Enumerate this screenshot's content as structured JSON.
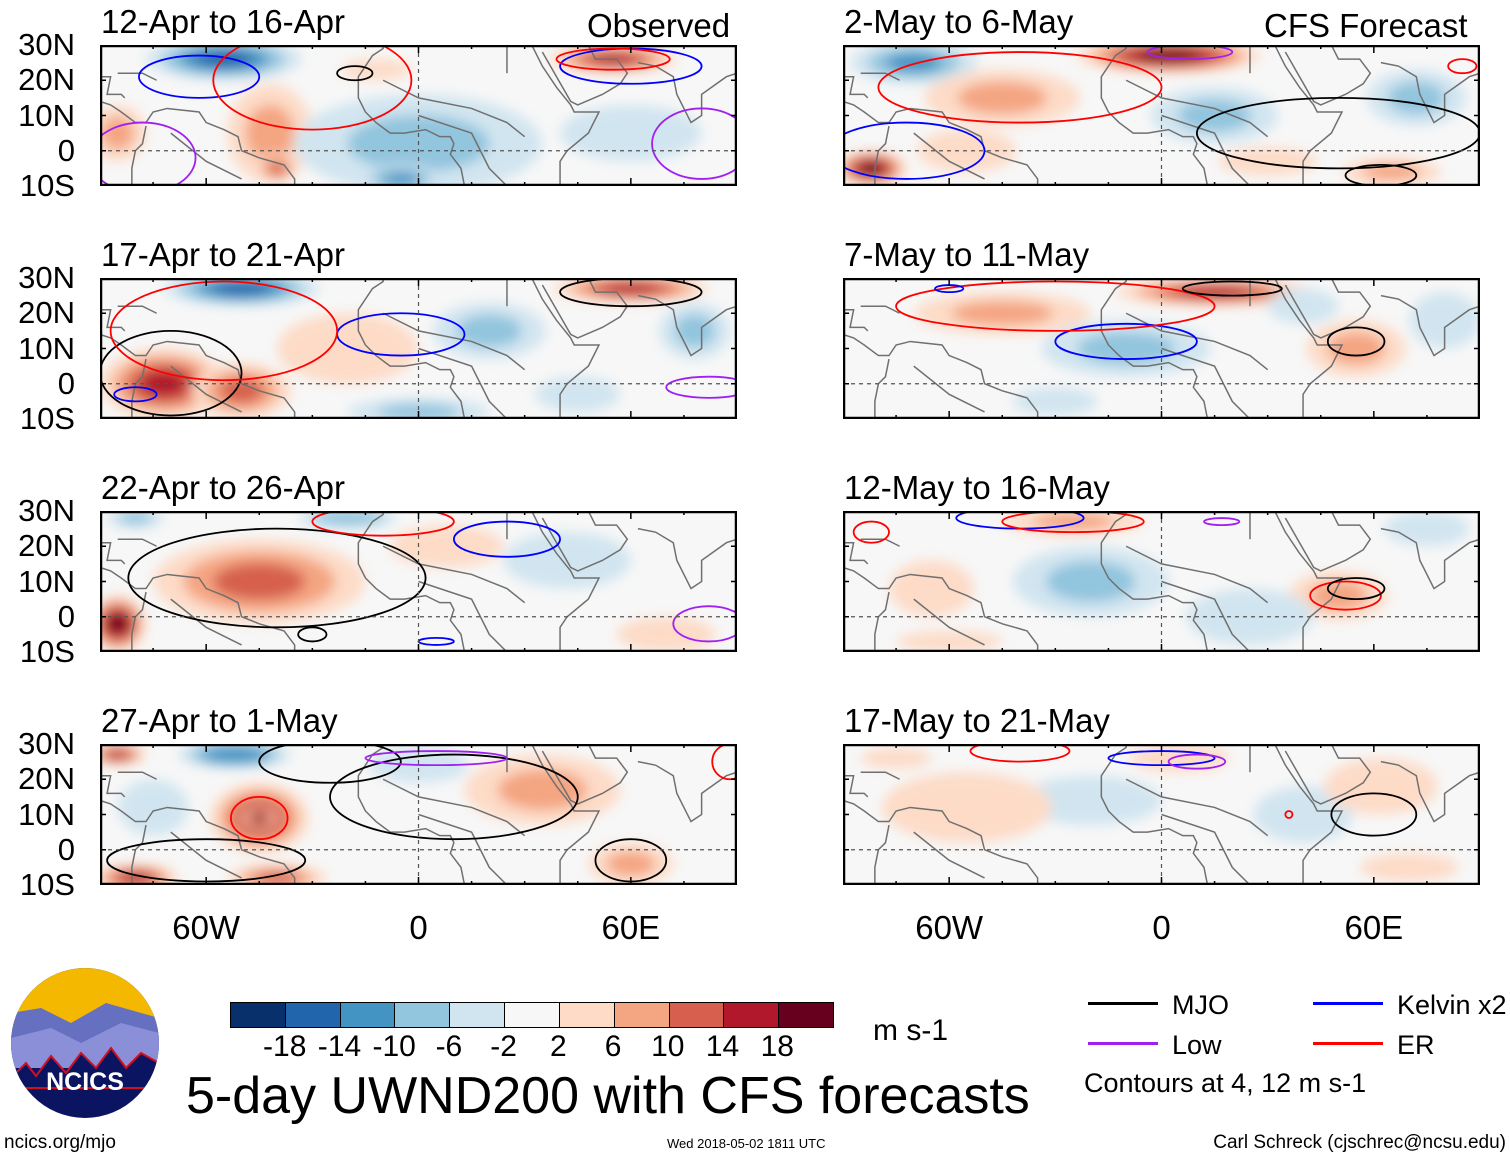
{
  "header": {
    "left_label": "Observed",
    "right_label": "CFS Forecast"
  },
  "lat_labels": [
    "30N",
    "20N",
    "10N",
    "0",
    "10S"
  ],
  "lon_labels": [
    "60W",
    "0",
    "60E"
  ],
  "panels": [
    {
      "title": "12-Apr to 16-Apr",
      "column": "observed",
      "blobs": [
        [
          -55,
          26,
          22,
          6,
          -16
        ],
        [
          -42,
          5,
          12,
          14,
          8
        ],
        [
          -40,
          -5,
          6,
          4,
          12
        ],
        [
          0,
          2,
          35,
          14,
          -8
        ],
        [
          -5,
          -8,
          12,
          4,
          -11
        ],
        [
          55,
          26,
          18,
          4,
          14
        ],
        [
          -12,
          23,
          10,
          3,
          5
        ],
        [
          60,
          5,
          20,
          8,
          -3
        ],
        [
          -85,
          5,
          8,
          8,
          6
        ]
      ],
      "contours": [
        [
          -62,
          21,
          17,
          6,
          "kelvin"
        ],
        [
          -30,
          20,
          28,
          14,
          "er"
        ],
        [
          -18,
          22,
          5,
          2,
          "mjo"
        ],
        [
          60,
          24,
          20,
          5,
          "kelvin"
        ],
        [
          55,
          26,
          16,
          3,
          "er"
        ],
        [
          80,
          2,
          14,
          10,
          "low"
        ],
        [
          -78,
          -2,
          15,
          10,
          "low"
        ]
      ]
    },
    {
      "title": "17-Apr to 21-Apr",
      "column": "observed",
      "blobs": [
        [
          -50,
          27,
          22,
          5,
          -16
        ],
        [
          -72,
          0,
          18,
          10,
          16
        ],
        [
          -50,
          -2,
          14,
          8,
          12
        ],
        [
          60,
          27,
          22,
          4,
          14
        ],
        [
          20,
          15,
          16,
          8,
          -8
        ],
        [
          78,
          15,
          10,
          8,
          -8
        ],
        [
          0,
          -8,
          20,
          4,
          -8
        ],
        [
          -20,
          10,
          20,
          10,
          3
        ],
        [
          45,
          -3,
          12,
          5,
          -6
        ]
      ],
      "contours": [
        [
          -70,
          3,
          20,
          12,
          "mjo"
        ],
        [
          -5,
          14,
          18,
          6,
          "kelvin"
        ],
        [
          -55,
          15,
          32,
          14,
          "er"
        ],
        [
          60,
          26,
          20,
          4,
          "mjo"
        ],
        [
          82,
          -1,
          12,
          3,
          "low"
        ],
        [
          -80,
          -3,
          6,
          2,
          "kelvin"
        ]
      ]
    },
    {
      "title": "22-Apr to 26-Apr",
      "column": "observed",
      "blobs": [
        [
          -45,
          10,
          30,
          12,
          10
        ],
        [
          -85,
          -2,
          8,
          8,
          18
        ],
        [
          -20,
          28,
          14,
          3,
          -10
        ],
        [
          42,
          16,
          18,
          8,
          -6
        ],
        [
          8,
          20,
          16,
          6,
          4
        ],
        [
          -80,
          28,
          8,
          3,
          -8
        ],
        [
          70,
          -5,
          14,
          5,
          4
        ]
      ],
      "contours": [
        [
          -40,
          11,
          42,
          14,
          "mjo"
        ],
        [
          25,
          22,
          15,
          5,
          "kelvin"
        ],
        [
          -10,
          27,
          20,
          4,
          "er"
        ],
        [
          -30,
          -5,
          4,
          2,
          "mjo"
        ],
        [
          5,
          -7,
          5,
          1,
          "kelvin"
        ],
        [
          82,
          -2,
          10,
          5,
          "low"
        ]
      ]
    },
    {
      "title": "27-Apr to 1-May",
      "column": "observed",
      "blobs": [
        [
          -45,
          9,
          14,
          10,
          14
        ],
        [
          -45,
          9,
          5,
          3,
          20
        ],
        [
          -52,
          27,
          16,
          4,
          -14
        ],
        [
          -85,
          27,
          8,
          3,
          14
        ],
        [
          -80,
          -8,
          12,
          4,
          16
        ],
        [
          -40,
          -8,
          14,
          4,
          12
        ],
        [
          35,
          17,
          22,
          10,
          7
        ],
        [
          0,
          24,
          14,
          5,
          -5
        ],
        [
          60,
          -4,
          12,
          6,
          6
        ],
        [
          -75,
          12,
          10,
          8,
          -4
        ]
      ],
      "contours": [
        [
          -45,
          9,
          8,
          6,
          "er"
        ],
        [
          -25,
          25,
          20,
          6,
          "mjo"
        ],
        [
          10,
          15,
          35,
          12,
          "mjo"
        ],
        [
          -60,
          -3,
          28,
          6,
          "mjo"
        ],
        [
          5,
          26,
          20,
          2,
          "low"
        ],
        [
          60,
          -3,
          10,
          6,
          "mjo"
        ],
        [
          88,
          25,
          5,
          5,
          "er"
        ]
      ]
    },
    {
      "title": "2-May to 6-May",
      "column": "forecast",
      "blobs": [
        [
          2,
          27,
          26,
          5,
          18
        ],
        [
          -70,
          25,
          18,
          6,
          -12
        ],
        [
          -45,
          15,
          22,
          8,
          8
        ],
        [
          -82,
          -5,
          10,
          5,
          18
        ],
        [
          15,
          10,
          18,
          8,
          -8
        ],
        [
          72,
          15,
          14,
          8,
          -8
        ],
        [
          65,
          -6,
          14,
          4,
          8
        ],
        [
          30,
          -3,
          14,
          4,
          4
        ],
        [
          -55,
          0,
          14,
          6,
          3
        ]
      ],
      "contours": [
        [
          -40,
          18,
          40,
          10,
          "er"
        ],
        [
          -72,
          0,
          22,
          8,
          "kelvin"
        ],
        [
          50,
          5,
          40,
          10,
          "mjo"
        ],
        [
          62,
          -7,
          10,
          3,
          "mjo"
        ],
        [
          8,
          28,
          12,
          2,
          "low"
        ],
        [
          85,
          24,
          4,
          2,
          "er"
        ]
      ]
    },
    {
      "title": "7-May to 11-May",
      "column": "forecast",
      "blobs": [
        [
          15,
          26,
          28,
          4,
          14
        ],
        [
          -10,
          10,
          24,
          8,
          -8
        ],
        [
          -45,
          20,
          25,
          6,
          6
        ],
        [
          55,
          10,
          14,
          8,
          6
        ],
        [
          80,
          18,
          10,
          8,
          -6
        ],
        [
          -30,
          -5,
          12,
          4,
          -4
        ],
        [
          40,
          22,
          10,
          5,
          -5
        ]
      ],
      "contours": [
        [
          -10,
          12,
          20,
          5,
          "kelvin"
        ],
        [
          -30,
          22,
          45,
          7,
          "er"
        ],
        [
          20,
          27,
          14,
          2,
          "mjo"
        ],
        [
          55,
          12,
          8,
          4,
          "mjo"
        ],
        [
          -60,
          27,
          4,
          1,
          "kelvin"
        ]
      ]
    },
    {
      "title": "12-May to 16-May",
      "column": "forecast",
      "blobs": [
        [
          -25,
          27,
          20,
          4,
          8
        ],
        [
          -20,
          10,
          22,
          10,
          -8
        ],
        [
          50,
          6,
          14,
          7,
          8
        ],
        [
          -65,
          8,
          12,
          8,
          4
        ],
        [
          25,
          0,
          18,
          8,
          -4
        ],
        [
          75,
          25,
          12,
          5,
          -5
        ],
        [
          -60,
          -7,
          15,
          3,
          4
        ]
      ],
      "contours": [
        [
          -40,
          28,
          18,
          3,
          "kelvin"
        ],
        [
          -25,
          27,
          20,
          3,
          "er"
        ],
        [
          52,
          6,
          10,
          4,
          "er"
        ],
        [
          55,
          8,
          8,
          3,
          "mjo"
        ],
        [
          -82,
          24,
          5,
          3,
          "er"
        ],
        [
          17,
          27,
          5,
          1,
          "low"
        ]
      ]
    },
    {
      "title": "17-May to 21-May",
      "column": "forecast",
      "blobs": [
        [
          -20,
          14,
          20,
          7,
          -6
        ],
        [
          -55,
          12,
          24,
          10,
          4
        ],
        [
          40,
          10,
          14,
          8,
          -6
        ],
        [
          62,
          18,
          16,
          8,
          4
        ],
        [
          5,
          26,
          14,
          4,
          4
        ],
        [
          -75,
          26,
          10,
          3,
          4
        ],
        [
          70,
          -5,
          14,
          4,
          3
        ]
      ],
      "contours": [
        [
          60,
          10,
          12,
          6,
          "mjo"
        ],
        [
          0,
          26,
          15,
          2,
          "kelvin"
        ],
        [
          10,
          25,
          8,
          2,
          "low"
        ],
        [
          -40,
          28,
          14,
          3,
          "er"
        ],
        [
          36,
          10,
          1,
          1,
          "er"
        ]
      ]
    }
  ],
  "colorbar": {
    "colors": [
      "#08306b",
      "#2166ac",
      "#4393c3",
      "#92c5de",
      "#d1e5f0",
      "#f7f7f7",
      "#fddbc7",
      "#f4a582",
      "#d6604d",
      "#b2182b",
      "#67001f"
    ],
    "labels": [
      "-18",
      "-14",
      "-10",
      "-6",
      "-2",
      "2",
      "6",
      "10",
      "14",
      "18"
    ],
    "units": "m s-1"
  },
  "legend": {
    "items": [
      {
        "label": "MJO",
        "color": "#000000"
      },
      {
        "label": "Kelvin x2",
        "color": "#0000ff"
      },
      {
        "label": "Low",
        "color": "#a020f0"
      },
      {
        "label": "ER",
        "color": "#ff0000"
      }
    ],
    "note": "Contours at 4, 12 m s-1"
  },
  "title": "5-day UWND200 with CFS forecasts",
  "logo_text": "NCICS",
  "footer": {
    "url": "ncics.org/mjo",
    "timestamp": "Wed 2018-05-02 1811 UTC",
    "credit": "Carl Schreck (cjschrec@ncsu.edu)"
  }
}
